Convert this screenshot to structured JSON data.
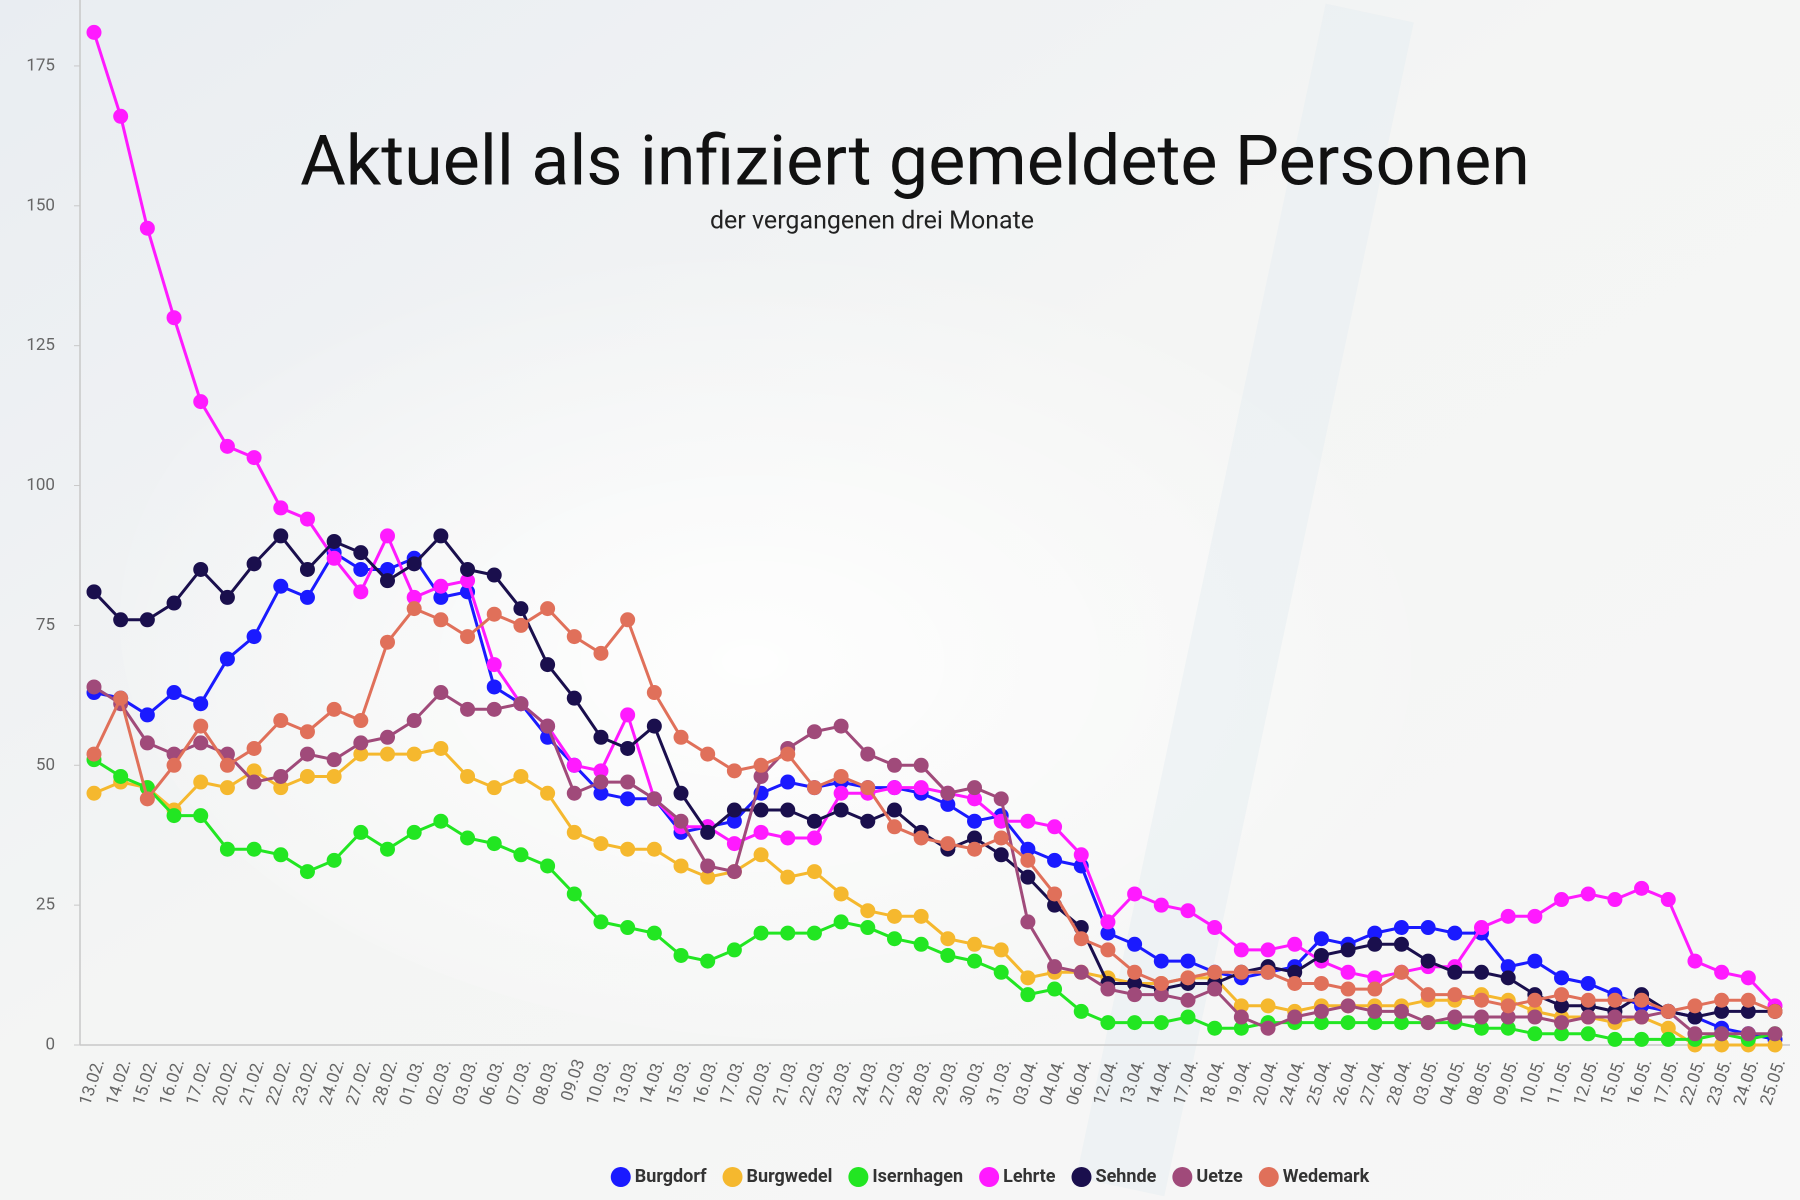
{
  "chart_data": {
    "type": "line",
    "title": "Aktuell als infiziert gemeldete Personen",
    "subtitle": "der vergangenen drei Monate",
    "categories": [
      "13.02.",
      "14.02.",
      "15.02.",
      "16.02.",
      "17.02.",
      "20.02.",
      "21.02.",
      "22.02.",
      "23.02.",
      "24.02.",
      "27.02.",
      "28.02.",
      "01.03.",
      "02.03.",
      "03.03.",
      "06.03.",
      "07.03.",
      "08.03.",
      "09.03",
      "10.03.",
      "13.03.",
      "14.03.",
      "15.03.",
      "16.03.",
      "17.03.",
      "20.03.",
      "21.03.",
      "22.03.",
      "23.03.",
      "24.03.",
      "27.03.",
      "28.03.",
      "29.03.",
      "30.03.",
      "31.03.",
      "03.04.",
      "04.04.",
      "06.04.",
      "12.04.",
      "13.04.",
      "14.04.",
      "17.04.",
      "18.04.",
      "19.04.",
      "20.04.",
      "24.04.",
      "25.04.",
      "26.04.",
      "27.04.",
      "28.04.",
      "03.05.",
      "04.05.",
      "08.05.",
      "09.05.",
      "10.05.",
      "11.05.",
      "12.05.",
      "15.05.",
      "16.05.",
      "17.05.",
      "22.05.",
      "23.05.",
      "24.05.",
      "25.05."
    ],
    "series": [
      {
        "name": "Burgdorf",
        "color": "#1a1aff",
        "values": [
          63,
          62,
          59,
          63,
          61,
          69,
          73,
          82,
          80,
          88,
          85,
          85,
          87,
          80,
          81,
          64,
          61,
          55,
          50,
          45,
          44,
          44,
          38,
          39,
          40,
          45,
          47,
          46,
          47,
          46,
          46,
          45,
          43,
          40,
          41,
          35,
          33,
          32,
          20,
          18,
          15,
          15,
          13,
          12,
          13,
          14,
          19,
          18,
          20,
          21,
          21,
          20,
          20,
          14,
          15,
          12,
          11,
          9,
          7,
          6,
          5,
          3,
          2,
          1
        ]
      },
      {
        "name": "Burgwedel",
        "color": "#f5b82e",
        "values": [
          45,
          47,
          46,
          42,
          47,
          46,
          49,
          46,
          48,
          48,
          52,
          52,
          52,
          53,
          48,
          46,
          48,
          45,
          38,
          36,
          35,
          35,
          32,
          30,
          31,
          34,
          30,
          31,
          27,
          24,
          23,
          23,
          19,
          18,
          17,
          12,
          13,
          13,
          12,
          11,
          11,
          12,
          12,
          7,
          7,
          6,
          7,
          7,
          7,
          7,
          8,
          8,
          9,
          8,
          6,
          5,
          5,
          4,
          5,
          3,
          0,
          0,
          0,
          0
        ]
      },
      {
        "name": "Isernhagen",
        "color": "#22e622",
        "values": [
          51,
          48,
          46,
          41,
          41,
          35,
          35,
          34,
          31,
          33,
          38,
          35,
          38,
          40,
          37,
          36,
          34,
          32,
          27,
          22,
          21,
          20,
          16,
          15,
          17,
          20,
          20,
          20,
          22,
          21,
          19,
          18,
          16,
          15,
          13,
          9,
          10,
          6,
          4,
          4,
          4,
          5,
          3,
          3,
          4,
          4,
          4,
          4,
          4,
          4,
          4,
          4,
          3,
          3,
          2,
          2,
          2,
          1,
          1,
          1,
          1,
          2,
          1,
          2
        ]
      },
      {
        "name": "Lehrte",
        "color": "#ff1aff",
        "values": [
          181,
          166,
          146,
          130,
          115,
          107,
          105,
          96,
          94,
          87,
          81,
          91,
          80,
          82,
          83,
          68,
          61,
          57,
          50,
          49,
          59,
          44,
          39,
          39,
          36,
          38,
          37,
          37,
          45,
          45,
          46,
          46,
          45,
          44,
          40,
          40,
          39,
          34,
          22,
          27,
          25,
          24,
          21,
          17,
          17,
          18,
          15,
          13,
          12,
          13,
          14,
          14,
          21,
          23,
          23,
          26,
          27,
          26,
          28,
          26,
          15,
          13,
          12,
          7
        ]
      },
      {
        "name": "Sehnde",
        "color": "#1a0f4d",
        "values": [
          81,
          76,
          76,
          79,
          85,
          80,
          86,
          91,
          85,
          90,
          88,
          83,
          86,
          91,
          85,
          84,
          78,
          68,
          62,
          55,
          53,
          57,
          45,
          38,
          42,
          42,
          42,
          40,
          42,
          40,
          42,
          38,
          35,
          37,
          34,
          30,
          25,
          21,
          11,
          11,
          10,
          11,
          11,
          13,
          14,
          13,
          16,
          17,
          18,
          18,
          15,
          13,
          13,
          12,
          9,
          7,
          7,
          6,
          9,
          6,
          5,
          6,
          6,
          6
        ]
      },
      {
        "name": "Uetze",
        "color": "#a04a7a",
        "values": [
          64,
          61,
          54,
          52,
          54,
          52,
          47,
          48,
          52,
          51,
          54,
          55,
          58,
          63,
          60,
          60,
          61,
          57,
          45,
          47,
          47,
          44,
          40,
          32,
          31,
          48,
          53,
          56,
          57,
          52,
          50,
          50,
          45,
          46,
          44,
          22,
          14,
          13,
          10,
          9,
          9,
          8,
          10,
          5,
          3,
          5,
          6,
          7,
          6,
          6,
          4,
          5,
          5,
          5,
          5,
          4,
          5,
          5,
          5,
          6,
          2,
          2,
          2,
          2
        ]
      },
      {
        "name": "Wedemark",
        "color": "#e0705a",
        "values": [
          52,
          62,
          44,
          50,
          57,
          50,
          53,
          58,
          56,
          60,
          58,
          72,
          78,
          76,
          73,
          77,
          75,
          78,
          73,
          70,
          76,
          63,
          55,
          52,
          49,
          50,
          52,
          46,
          48,
          46,
          39,
          37,
          36,
          35,
          37,
          33,
          27,
          19,
          17,
          13,
          11,
          12,
          13,
          13,
          13,
          11,
          11,
          10,
          10,
          13,
          9,
          9,
          8,
          7,
          8,
          9,
          8,
          8,
          8,
          6,
          7,
          8,
          8,
          6
        ]
      }
    ],
    "ylim": [
      0,
      185
    ],
    "yticks": [
      0,
      25,
      50,
      75,
      100,
      125,
      150,
      175
    ],
    "legend": "bottom"
  }
}
